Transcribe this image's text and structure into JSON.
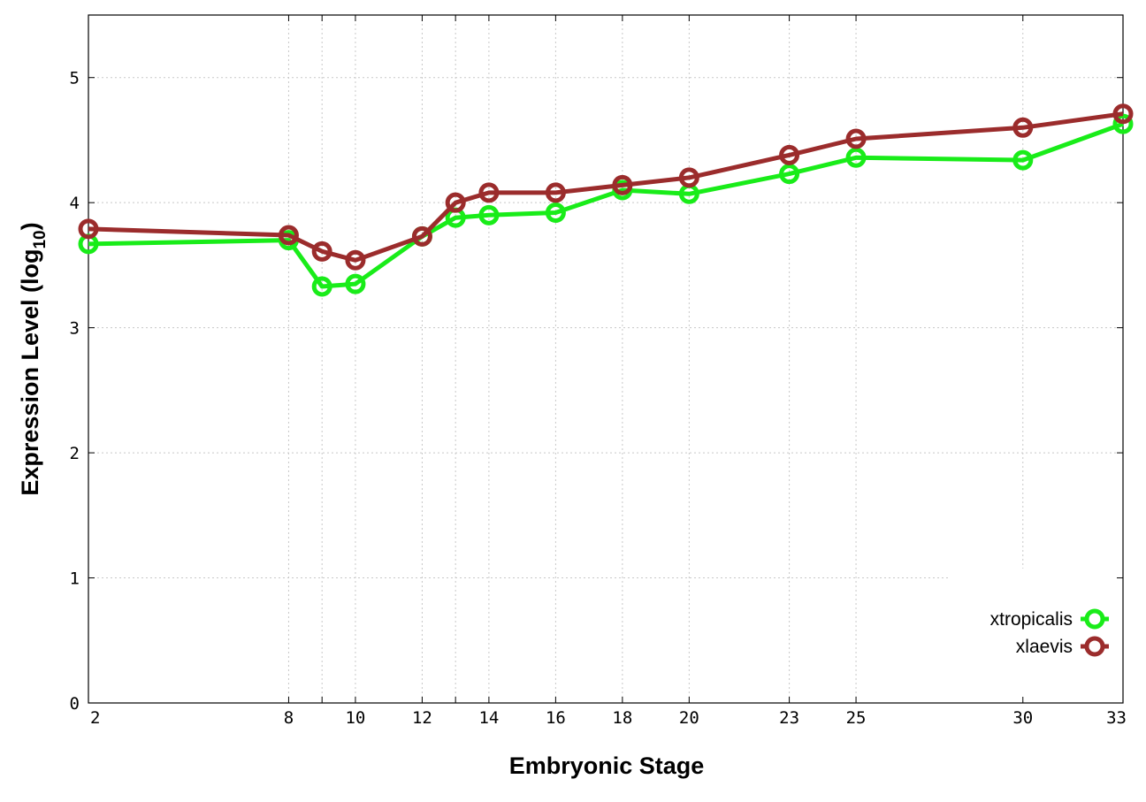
{
  "chart_data": {
    "type": "line",
    "title": "",
    "xlabel": "Embryonic Stage",
    "ylabel_main": "Expression Level (log",
    "ylabel_sub": "10",
    "ylabel_close": ")",
    "categories": [
      "2",
      "8",
      "9",
      "10",
      "12",
      "13",
      "14",
      "16",
      "18",
      "20",
      "23",
      "25",
      "30",
      "33"
    ],
    "x_tick_labels": [
      "2",
      "8",
      "10",
      "12",
      "14",
      "16",
      "18",
      "20",
      "23",
      "25",
      "30",
      "33"
    ],
    "y_ticks": [
      0,
      1,
      2,
      3,
      4,
      5
    ],
    "ylim": [
      0,
      5.5
    ],
    "grid": true,
    "legend_position": "bottom-right",
    "series": [
      {
        "name": "xtropicalis",
        "color": "#19ec19",
        "values": [
          3.67,
          3.7,
          3.33,
          3.35,
          3.73,
          3.88,
          3.9,
          3.92,
          4.1,
          4.07,
          4.23,
          4.36,
          4.34,
          4.63
        ]
      },
      {
        "name": "xlaevis",
        "color": "#9b2c2c",
        "values": [
          3.79,
          3.74,
          3.61,
          3.54,
          3.73,
          4.0,
          4.08,
          4.08,
          4.14,
          4.2,
          4.38,
          4.51,
          4.6,
          4.71
        ]
      }
    ]
  }
}
